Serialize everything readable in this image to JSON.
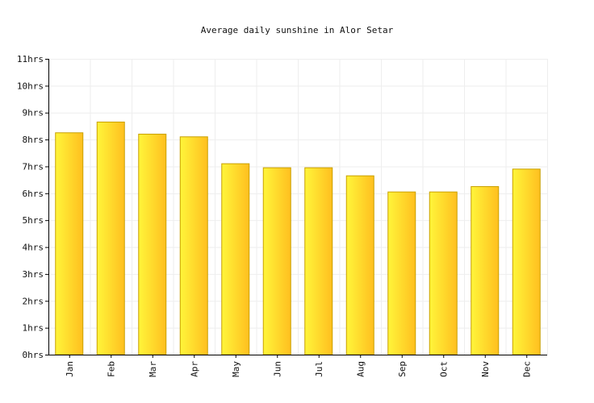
{
  "chart_data": {
    "type": "bar",
    "title": "Average daily sunshine in Alor Setar",
    "xlabel": "",
    "ylabel": "",
    "categories": [
      "Jan",
      "Feb",
      "Mar",
      "Apr",
      "May",
      "Jun",
      "Jul",
      "Aug",
      "Sep",
      "Oct",
      "Nov",
      "Dec"
    ],
    "values": [
      8.25,
      8.65,
      8.2,
      8.1,
      7.1,
      6.95,
      6.95,
      6.65,
      6.05,
      6.05,
      6.25,
      6.9
    ],
    "ylim": [
      0,
      11
    ],
    "yticks": [
      0,
      1,
      2,
      3,
      4,
      5,
      6,
      7,
      8,
      9,
      10,
      11
    ],
    "ytick_labels": [
      "0hrs",
      "1hrs",
      "2hrs",
      "3hrs",
      "4hrs",
      "5hrs",
      "6hrs",
      "7hrs",
      "8hrs",
      "9hrs",
      "10hrs",
      "11hrs"
    ],
    "grid": true,
    "legend": "none",
    "colors": {
      "bar_edge": "#c8a000",
      "bar_light": "#fff53a",
      "bar_dark": "#ffbf1f",
      "grid": "#eeeeee",
      "axis": "#000000"
    }
  }
}
